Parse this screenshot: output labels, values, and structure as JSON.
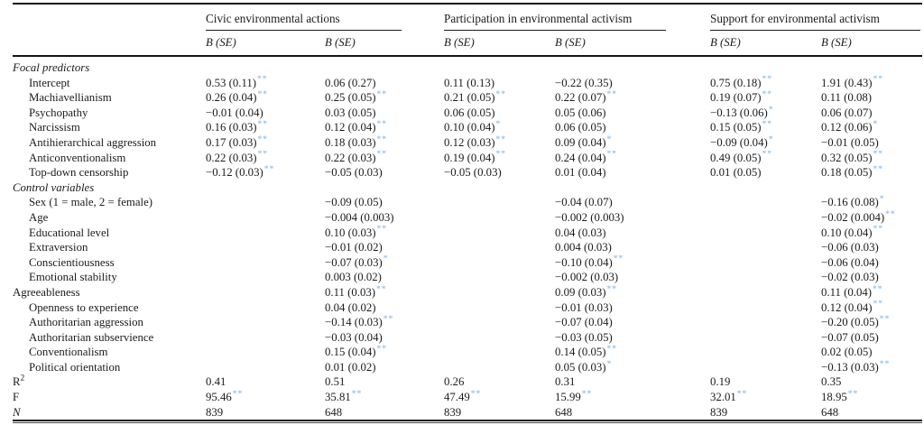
{
  "table": {
    "groups": [
      {
        "label": "Civic environmental actions"
      },
      {
        "label": "Participation in environmental activism"
      },
      {
        "label": "Support for environmental activism"
      }
    ],
    "column_header": "B (SE)",
    "significance_color": "#9dc3e6",
    "rows": [
      {
        "label": "Focal predictors",
        "style": "section",
        "cells": null
      },
      {
        "label": "Intercept",
        "style": "item",
        "cells": [
          [
            "0.53 (0.11)",
            "**"
          ],
          [
            "0.06 (0.27)",
            ""
          ],
          [
            "0.11 (0.13)",
            ""
          ],
          [
            "−0.22 (0.35)",
            ""
          ],
          [
            "0.75 (0.18)",
            "**"
          ],
          [
            "1.91 (0.43)",
            "**"
          ]
        ]
      },
      {
        "label": "Machiavellianism",
        "style": "item",
        "cells": [
          [
            "0.26 (0.04)",
            "**"
          ],
          [
            "0.25 (0.05)",
            "**"
          ],
          [
            "0.21 (0.05)",
            "**"
          ],
          [
            "0.22 (0.07)",
            "**"
          ],
          [
            "0.19 (0.07)",
            "**"
          ],
          [
            "0.11 (0.08)",
            ""
          ]
        ]
      },
      {
        "label": "Psychopathy",
        "style": "item",
        "cells": [
          [
            "−0.01 (0.04)",
            ""
          ],
          [
            "0.03 (0.05)",
            ""
          ],
          [
            "0.06 (0.05)",
            ""
          ],
          [
            "0.05 (0.06)",
            ""
          ],
          [
            "−0.13 (0.06)",
            "*"
          ],
          [
            "0.06 (0.07)",
            ""
          ]
        ]
      },
      {
        "label": "Narcissism",
        "style": "item",
        "cells": [
          [
            "0.16 (0.03)",
            "**"
          ],
          [
            "0.12 (0.04)",
            "**"
          ],
          [
            "0.10 (0.04)",
            "*"
          ],
          [
            "0.06 (0.05)",
            ""
          ],
          [
            "0.15 (0.05)",
            "**"
          ],
          [
            "0.12 (0.06)",
            "*"
          ]
        ]
      },
      {
        "label": "Antihierarchical aggression",
        "style": "item",
        "cells": [
          [
            "0.17 (0.03)",
            "**"
          ],
          [
            "0.18 (0.03)",
            "**"
          ],
          [
            "0.12 (0.03)",
            "**"
          ],
          [
            "0.09 (0.04)",
            "*"
          ],
          [
            "−0.09 (0.04)",
            "*"
          ],
          [
            "−0.01 (0.05)",
            ""
          ]
        ]
      },
      {
        "label": "Anticonventionalism",
        "style": "item",
        "cells": [
          [
            "0.22 (0.03)",
            "**"
          ],
          [
            "0.22 (0.03)",
            "**"
          ],
          [
            "0.19 (0.04)",
            "**"
          ],
          [
            "0.24 (0.04)",
            "**"
          ],
          [
            "0.49 (0.05)",
            "**"
          ],
          [
            "0.32 (0.05)",
            "**"
          ]
        ]
      },
      {
        "label": "Top-down censorship",
        "style": "item",
        "cells": [
          [
            "−0.12 (0.03)",
            "**"
          ],
          [
            "−0.05 (0.03)",
            ""
          ],
          [
            "−0.05 (0.03)",
            ""
          ],
          [
            "0.01 (0.04)",
            ""
          ],
          [
            "0.01 (0.05)",
            ""
          ],
          [
            "0.18 (0.05)",
            "**"
          ]
        ]
      },
      {
        "label": "Control variables",
        "style": "section",
        "cells": null
      },
      {
        "label": "Sex (1 = male, 2 = female)",
        "style": "item",
        "cells": [
          [
            "",
            ""
          ],
          [
            "−0.09 (0.05)",
            ""
          ],
          [
            "",
            ""
          ],
          [
            "−0.04 (0.07)",
            ""
          ],
          [
            "",
            ""
          ],
          [
            "−0.16 (0.08)",
            "*"
          ]
        ]
      },
      {
        "label": "Age",
        "style": "item",
        "cells": [
          [
            "",
            ""
          ],
          [
            "−0.004 (0.003)",
            ""
          ],
          [
            "",
            ""
          ],
          [
            "−0.002 (0.003)",
            ""
          ],
          [
            "",
            ""
          ],
          [
            "−0.02 (0.004)",
            "**"
          ]
        ]
      },
      {
        "label": "Educational level",
        "style": "item",
        "cells": [
          [
            "",
            ""
          ],
          [
            "0.10 (0.03)",
            "**"
          ],
          [
            "",
            ""
          ],
          [
            "0.04 (0.03)",
            ""
          ],
          [
            "",
            ""
          ],
          [
            "0.10 (0.04)",
            "**"
          ]
        ]
      },
      {
        "label": "Extraversion",
        "style": "item",
        "cells": [
          [
            "",
            ""
          ],
          [
            "−0.01 (0.02)",
            ""
          ],
          [
            "",
            ""
          ],
          [
            "0.004 (0.03)",
            ""
          ],
          [
            "",
            ""
          ],
          [
            "−0.06 (0.03)",
            ""
          ]
        ]
      },
      {
        "label": "Conscientiousness",
        "style": "item",
        "cells": [
          [
            "",
            ""
          ],
          [
            "−0.07 (0.03)",
            "*"
          ],
          [
            "",
            ""
          ],
          [
            "−0.10 (0.04)",
            "**"
          ],
          [
            "",
            ""
          ],
          [
            "−0.06 (0.04)",
            ""
          ]
        ]
      },
      {
        "label": "Emotional stability",
        "style": "item",
        "cells": [
          [
            "",
            ""
          ],
          [
            "0.003 (0.02)",
            ""
          ],
          [
            "",
            ""
          ],
          [
            "−0.002 (0.03)",
            ""
          ],
          [
            "",
            ""
          ],
          [
            "−0.02 (0.03)",
            ""
          ]
        ]
      },
      {
        "label": "Agreeableness",
        "style": "plain",
        "cells": [
          [
            "",
            ""
          ],
          [
            "0.11 (0.03)",
            "**"
          ],
          [
            "",
            ""
          ],
          [
            "0.09 (0.03)",
            "**"
          ],
          [
            "",
            ""
          ],
          [
            "0.11 (0.04)",
            "**"
          ]
        ]
      },
      {
        "label": "Openness to experience",
        "style": "item",
        "cells": [
          [
            "",
            ""
          ],
          [
            "0.04 (0.02)",
            ""
          ],
          [
            "",
            ""
          ],
          [
            "−0.01 (0.03)",
            ""
          ],
          [
            "",
            ""
          ],
          [
            "0.12 (0.04)",
            "**"
          ]
        ]
      },
      {
        "label": "Authoritarian aggression",
        "style": "item",
        "cells": [
          [
            "",
            ""
          ],
          [
            "−0.14 (0.03)",
            "**"
          ],
          [
            "",
            ""
          ],
          [
            "−0.07 (0.04)",
            ""
          ],
          [
            "",
            ""
          ],
          [
            "−0.20 (0.05)",
            "**"
          ]
        ]
      },
      {
        "label": "Authoritarian subservience",
        "style": "item",
        "cells": [
          [
            "",
            ""
          ],
          [
            "−0.03 (0.04)",
            ""
          ],
          [
            "",
            ""
          ],
          [
            "−0.03 (0.05)",
            ""
          ],
          [
            "",
            ""
          ],
          [
            "−0.07 (0.05)",
            ""
          ]
        ]
      },
      {
        "label": "Conventionalism",
        "style": "item",
        "cells": [
          [
            "",
            ""
          ],
          [
            "0.15 (0.04)",
            "**"
          ],
          [
            "",
            ""
          ],
          [
            "0.14 (0.05)",
            "**"
          ],
          [
            "",
            ""
          ],
          [
            "0.02 (0.05)",
            ""
          ]
        ]
      },
      {
        "label": "Political orientation",
        "style": "item",
        "cells": [
          [
            "",
            ""
          ],
          [
            "0.01 (0.02)",
            ""
          ],
          [
            "",
            ""
          ],
          [
            "0.05 (0.03)",
            "*"
          ],
          [
            "",
            ""
          ],
          [
            "−0.13 (0.03)",
            "**"
          ]
        ]
      },
      {
        "label": "R",
        "sup": "2",
        "style": "plain",
        "cells": [
          [
            "0.41",
            ""
          ],
          [
            "0.51",
            ""
          ],
          [
            "0.26",
            ""
          ],
          [
            "0.31",
            ""
          ],
          [
            "0.19",
            ""
          ],
          [
            "0.35",
            ""
          ]
        ]
      },
      {
        "label": "F",
        "style": "plain",
        "cells": [
          [
            "95.46",
            "**"
          ],
          [
            "35.81",
            "**"
          ],
          [
            "47.49",
            "**"
          ],
          [
            "15.99",
            "**"
          ],
          [
            "32.01",
            "**"
          ],
          [
            "18.95",
            "**"
          ]
        ]
      },
      {
        "label": "N",
        "style": "italic",
        "cells": [
          [
            "839",
            ""
          ],
          [
            "648",
            ""
          ],
          [
            "839",
            ""
          ],
          [
            "648",
            ""
          ],
          [
            "839",
            ""
          ],
          [
            "648",
            ""
          ]
        ]
      }
    ]
  }
}
